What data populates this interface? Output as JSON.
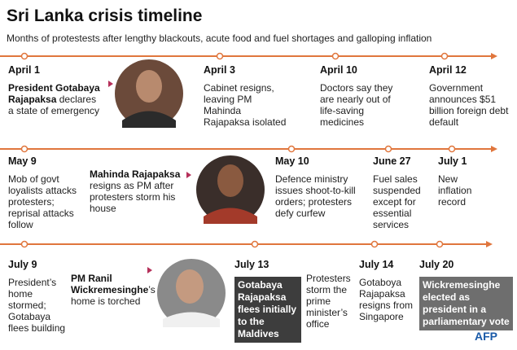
{
  "header": {
    "title": "Sri Lanka crisis timeline",
    "subtitle": "Months of protestests after lengthy blackouts, acute food and fuel shortages and galloping inflation"
  },
  "rows": [
    {
      "events": [
        {
          "date": "April 1",
          "lead": "President Gotabaya Rajapaksa",
          "text": "declares a state of emergency"
        },
        {
          "date": "April 3",
          "text": "Cabinet resigns, leaving PM Mahinda Rajapaksa isolated"
        },
        {
          "date": "April 10",
          "text": "Doctors say they are nearly out of life-saving medicines"
        },
        {
          "date": "April 12",
          "text": "Government announces $51 billion foreign debt default"
        }
      ]
    },
    {
      "events": [
        {
          "date": "May 9",
          "text": "Mob of govt loyalists attacks protesters; reprisal attacks follow"
        },
        {
          "lead": "Mahinda Rajapaksa",
          "text": "resigns as PM after protesters storm his house"
        },
        {
          "date": "May 10",
          "text": "Defence ministry issues shoot-to-kill orders; protesters defy curfew"
        },
        {
          "date": "June 27",
          "text": "Fuel sales suspended except for essential services"
        },
        {
          "date": "July 1",
          "text": "New inflation record"
        }
      ]
    },
    {
      "events": [
        {
          "date": "July 9",
          "text": "President’s home stormed; Gotabaya flees building"
        },
        {
          "lead": "PM Ranil Wickremesinghe",
          "text": "’s home is torched"
        },
        {
          "date": "July 13",
          "boxed_text": "Gotabaya Rajapaksa flees initially to the Maldives"
        },
        {
          "text": "Protesters storm the prime minister’s office"
        },
        {
          "date": "July 14",
          "text": "Gotaboya Rajapaksa resigns from Singapore"
        },
        {
          "date": "July 20",
          "boxed_text": "Wickremesinghe elected as president in a parliamentary vote"
        }
      ]
    }
  ],
  "footer": {
    "logo": "AFP"
  }
}
